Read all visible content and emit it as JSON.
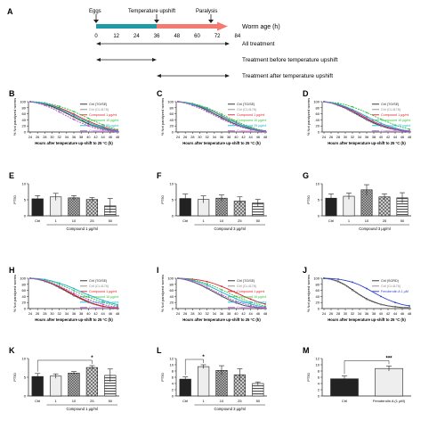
{
  "colors": {
    "teal": "#1f9ba8",
    "orange": "#f47b70",
    "black": "#222222",
    "blue": "#2c3fc9",
    "red": "#e0202a",
    "green": "#2fbf3a",
    "cyan": "#1ab0d0",
    "purple": "#b050d0",
    "magenta": "#e040e0",
    "grey": "#888888",
    "dark": "#222222"
  },
  "timeline": {
    "label_A": "A",
    "eggs": "Eggs",
    "upshift": "Temperature upshift",
    "paralysis": "Paralysis",
    "worm_age": "Worm age (h)",
    "ticks": [
      "0",
      "12",
      "24",
      "36",
      "48",
      "60",
      "72",
      "84"
    ],
    "all_treatment": "All treatment",
    "before_upshift": "Treatment before temperature upshift",
    "after_upshift": "Treatment after temperature upshift"
  },
  "chart_data": [
    {
      "panel": "B",
      "type": "line",
      "ylabel": "% Not paralyzed worms",
      "xlabel": "Hours after temperature up-shift to 25 °C (h)",
      "x": [
        24,
        26,
        28,
        30,
        32,
        34,
        36,
        38,
        40,
        42,
        44,
        46,
        48
      ],
      "ylim": [
        0,
        100
      ],
      "series": [
        {
          "name": "Ctrl (TG/SE)",
          "color": "black",
          "values": [
            100,
            97,
            92,
            84,
            74,
            62,
            50,
            38,
            27,
            18,
            11,
            6,
            3
          ]
        },
        {
          "name": "Ctrl (CL4176)",
          "color": "grey",
          "values": [
            100,
            96,
            90,
            82,
            72,
            60,
            48,
            36,
            25,
            16,
            10,
            5,
            2
          ]
        },
        {
          "name": "Compound 1 μg/ml",
          "color": "red",
          "values": [
            100,
            98,
            94,
            88,
            80,
            70,
            59,
            47,
            36,
            26,
            17,
            10,
            5
          ]
        },
        {
          "name": "Compound 10 μg/ml",
          "color": "green",
          "values": [
            100,
            99,
            96,
            91,
            85,
            77,
            67,
            56,
            45,
            34,
            24,
            15,
            8
          ]
        },
        {
          "name": "Compound 25 μg/ml",
          "color": "cyan",
          "values": [
            100,
            98,
            94,
            87,
            78,
            67,
            55,
            43,
            32,
            22,
            14,
            8,
            4
          ]
        },
        {
          "name": "Compound 50 μg/ml",
          "color": "purple",
          "values": [
            100,
            95,
            88,
            78,
            66,
            53,
            41,
            30,
            20,
            12,
            7,
            3,
            1
          ]
        }
      ]
    },
    {
      "panel": "C",
      "type": "line",
      "ylabel": "% Not paralyzed worms",
      "xlabel": "Hours after temperature up-shift to 25 °C (h)",
      "x": [
        24,
        26,
        28,
        30,
        32,
        34,
        36,
        38,
        40,
        42,
        44,
        46,
        48
      ],
      "ylim": [
        0,
        100
      ],
      "series": [
        {
          "name": "Ctrl (TG/SE)",
          "color": "black",
          "values": [
            100,
            97,
            91,
            83,
            72,
            60,
            48,
            36,
            25,
            16,
            10,
            5,
            2
          ]
        },
        {
          "name": "Ctrl (CL4176)",
          "color": "grey",
          "values": [
            100,
            96,
            90,
            81,
            70,
            58,
            46,
            34,
            23,
            15,
            9,
            4,
            2
          ]
        },
        {
          "name": "Compound 1 μg/ml",
          "color": "red",
          "values": [
            100,
            98,
            93,
            86,
            77,
            66,
            54,
            42,
            31,
            21,
            13,
            7,
            3
          ]
        },
        {
          "name": "Compound 10 μg/ml",
          "color": "green",
          "values": [
            100,
            98,
            94,
            88,
            80,
            70,
            59,
            47,
            36,
            25,
            16,
            9,
            4
          ]
        },
        {
          "name": "Compound 25 μg/ml",
          "color": "cyan",
          "values": [
            100,
            97,
            92,
            85,
            76,
            65,
            53,
            41,
            30,
            20,
            12,
            6,
            3
          ]
        },
        {
          "name": "Compound 50 μg/ml",
          "color": "purple",
          "values": [
            100,
            95,
            88,
            78,
            67,
            55,
            43,
            32,
            22,
            14,
            8,
            4,
            1
          ]
        }
      ]
    },
    {
      "panel": "D",
      "type": "line",
      "ylabel": "% Not paralyzed worms",
      "xlabel": "Hours after temperature up-shift to 25 °C (h)",
      "x": [
        24,
        26,
        28,
        30,
        32,
        34,
        36,
        38,
        40,
        42,
        44,
        46,
        48
      ],
      "ylim": [
        0,
        100
      ],
      "series": [
        {
          "name": "Ctrl (TG/SE)",
          "color": "black",
          "values": [
            100,
            96,
            89,
            79,
            67,
            54,
            41,
            30,
            20,
            13,
            8,
            4,
            2
          ]
        },
        {
          "name": "Ctrl (CL4176)",
          "color": "grey",
          "values": [
            100,
            95,
            87,
            77,
            65,
            52,
            39,
            28,
            19,
            12,
            7,
            3,
            1
          ]
        },
        {
          "name": "Compound 1 μg/ml",
          "color": "red",
          "values": [
            100,
            97,
            91,
            82,
            71,
            59,
            46,
            34,
            24,
            16,
            10,
            5,
            2
          ]
        },
        {
          "name": "Compound 10 μg/ml",
          "color": "green",
          "values": [
            100,
            98,
            95,
            90,
            83,
            74,
            64,
            53,
            42,
            32,
            23,
            15,
            9
          ]
        },
        {
          "name": "Compound 25 μg/ml",
          "color": "cyan",
          "values": [
            100,
            97,
            92,
            84,
            74,
            63,
            51,
            40,
            29,
            20,
            13,
            7,
            3
          ]
        },
        {
          "name": "Compound 50 μg/ml",
          "color": "purple",
          "values": [
            100,
            96,
            89,
            80,
            69,
            57,
            44,
            33,
            23,
            15,
            9,
            5,
            2
          ]
        }
      ]
    },
    {
      "panel": "E",
      "type": "bar",
      "ylabel": "PT50",
      "xlabel": "Compound 1 μg/ml",
      "categories": [
        "Ctrl",
        "1",
        "10",
        "25",
        "50"
      ],
      "ylim": [
        0,
        10
      ],
      "values": [
        5.3,
        5.9,
        5.6,
        5.1,
        3.1
      ],
      "errors": [
        1.0,
        1.1,
        0.7,
        0.6,
        2.3
      ],
      "fills": [
        "dark",
        "light",
        "check",
        "check2",
        "stripe"
      ]
    },
    {
      "panel": "F",
      "type": "bar",
      "ylabel": "PT50",
      "xlabel": "Compound 3 μg/ml",
      "categories": [
        "Ctrl",
        "1",
        "10",
        "25",
        "50"
      ],
      "ylim": [
        0,
        10
      ],
      "values": [
        5.4,
        5.1,
        5.5,
        4.6,
        4.0
      ],
      "errors": [
        1.4,
        1.1,
        1.0,
        1.3,
        1.1
      ],
      "fills": [
        "dark",
        "light",
        "check",
        "check2",
        "stripe"
      ]
    },
    {
      "panel": "G",
      "type": "bar",
      "ylabel": "PT50",
      "xlabel": "Compound 3 μg/ml",
      "categories": [
        "Ctrl",
        "1",
        "10",
        "25",
        "50"
      ],
      "ylim": [
        0,
        10
      ],
      "values": [
        5.5,
        6.1,
        8.1,
        5.9,
        5.6
      ],
      "errors": [
        1.3,
        1.0,
        1.6,
        0.9,
        1.6
      ],
      "fills": [
        "dark",
        "light",
        "check",
        "check2",
        "stripe"
      ]
    },
    {
      "panel": "H",
      "type": "line",
      "ylabel": "% Not paralyzed worms",
      "xlabel": "Hours after temperature up-shift to 25 °C (h)",
      "x": [
        24,
        26,
        28,
        30,
        32,
        34,
        36,
        38,
        40,
        42,
        44,
        46,
        48
      ],
      "ylim": [
        0,
        100
      ],
      "series": [
        {
          "name": "Ctrl (TG/SE)",
          "color": "black",
          "values": [
            100,
            97,
            91,
            82,
            70,
            57,
            44,
            32,
            21,
            13,
            7,
            3,
            1
          ]
        },
        {
          "name": "Ctrl (CL4176)",
          "color": "grey",
          "values": [
            100,
            96,
            89,
            80,
            68,
            55,
            42,
            30,
            20,
            12,
            6,
            3,
            1
          ]
        },
        {
          "name": "Compound 1 μg/ml",
          "color": "red",
          "values": [
            100,
            97,
            92,
            83,
            72,
            59,
            46,
            34,
            23,
            14,
            8,
            4,
            2
          ]
        },
        {
          "name": "Compound 10 μg/ml",
          "color": "green",
          "values": [
            100,
            98,
            94,
            88,
            80,
            70,
            59,
            48,
            38,
            29,
            21,
            14,
            9
          ]
        },
        {
          "name": "Compound 25 μg/ml",
          "color": "cyan",
          "values": [
            100,
            99,
            96,
            91,
            84,
            76,
            66,
            55,
            45,
            36,
            27,
            19,
            13
          ]
        },
        {
          "name": "Compound 50 μg/ml",
          "color": "purple",
          "values": [
            100,
            97,
            92,
            84,
            74,
            63,
            51,
            40,
            30,
            21,
            14,
            8,
            5
          ]
        }
      ]
    },
    {
      "panel": "I",
      "type": "line",
      "ylabel": "% Not paralyzed worms",
      "xlabel": "Hours after temperature up-shift to 25 °C (h)",
      "x": [
        24,
        26,
        28,
        30,
        32,
        34,
        36,
        38,
        40,
        42,
        44,
        46,
        48
      ],
      "ylim": [
        0,
        100
      ],
      "series": [
        {
          "name": "Ctrl (TG/SE)",
          "color": "black",
          "values": [
            100,
            96,
            89,
            79,
            67,
            54,
            41,
            29,
            19,
            11,
            6,
            3,
            1
          ]
        },
        {
          "name": "Ctrl (CL4176)",
          "color": "grey",
          "values": [
            100,
            95,
            88,
            78,
            66,
            53,
            40,
            28,
            18,
            11,
            6,
            2,
            1
          ]
        },
        {
          "name": "Compound 1 μg/ml",
          "color": "red",
          "values": [
            100,
            99,
            97,
            94,
            89,
            82,
            73,
            63,
            52,
            41,
            31,
            22,
            15
          ]
        },
        {
          "name": "Compound 10 μg/ml",
          "color": "green",
          "values": [
            100,
            98,
            95,
            89,
            82,
            73,
            62,
            51,
            40,
            30,
            21,
            14,
            8
          ]
        },
        {
          "name": "Compound 25 μg/ml",
          "color": "cyan",
          "values": [
            100,
            98,
            93,
            86,
            77,
            66,
            54,
            43,
            32,
            23,
            15,
            9,
            5
          ]
        },
        {
          "name": "Compound 50 μg/ml",
          "color": "purple",
          "values": [
            100,
            96,
            90,
            81,
            70,
            58,
            46,
            34,
            24,
            16,
            10,
            5,
            2
          ]
        }
      ]
    },
    {
      "panel": "J",
      "type": "line",
      "ylabel": "% Not paralyzed worms",
      "xlabel": "Hours after temperature up-shift to 25 °C (h)",
      "x": [
        24,
        26,
        28,
        30,
        32,
        34,
        36,
        38,
        40,
        42,
        44,
        46,
        48
      ],
      "ylim": [
        0,
        100
      ],
      "series": [
        {
          "name": "Ctrl (SORD)",
          "color": "black",
          "values": [
            100,
            97,
            90,
            78,
            62,
            46,
            32,
            22,
            14,
            9,
            6,
            4,
            3
          ]
        },
        {
          "name": "Ctrl (CL4176)",
          "color": "grey",
          "values": [
            100,
            96,
            88,
            76,
            60,
            44,
            30,
            20,
            13,
            8,
            5,
            3,
            2
          ]
        },
        {
          "name": "Fenoterolin A 1 μM",
          "color": "blue",
          "values": [
            100,
            99,
            97,
            93,
            87,
            78,
            66,
            53,
            40,
            29,
            20,
            13,
            9
          ]
        }
      ]
    },
    {
      "panel": "K",
      "type": "bar",
      "ylabel": "PT50",
      "xlabel": "Compound 1 μg/ml",
      "categories": [
        "Ctrl",
        "1",
        "10",
        "25",
        "50"
      ],
      "ylim": [
        0,
        10
      ],
      "values": [
        5.2,
        5.3,
        6.1,
        7.6,
        5.5
      ],
      "errors": [
        0.8,
        0.6,
        0.4,
        0.5,
        1.7
      ],
      "fills": [
        "dark",
        "light",
        "check",
        "check2",
        "stripe"
      ],
      "annotation": "*"
    },
    {
      "panel": "L",
      "type": "bar",
      "ylabel": "PT50",
      "xlabel": "Compound 3 μg/ml",
      "categories": [
        "Ctrl",
        "1",
        "10",
        "25",
        "50"
      ],
      "ylim": [
        0,
        12
      ],
      "values": [
        5.4,
        9.4,
        8.2,
        6.8,
        4.0
      ],
      "errors": [
        0.7,
        0.6,
        1.5,
        1.9,
        0.5
      ],
      "fills": [
        "dark",
        "light",
        "check",
        "check2",
        "stripe"
      ],
      "annotation": "*"
    },
    {
      "panel": "M",
      "type": "bar",
      "ylabel": "PT50",
      "categories": [
        "Ctrl",
        "Fenoterolin A (1 μM)"
      ],
      "ylim": [
        0,
        12
      ],
      "values": [
        5.5,
        8.8
      ],
      "errors": [
        0.9,
        0.8
      ],
      "fills": [
        "dark",
        "light"
      ],
      "annotation": "***"
    }
  ]
}
